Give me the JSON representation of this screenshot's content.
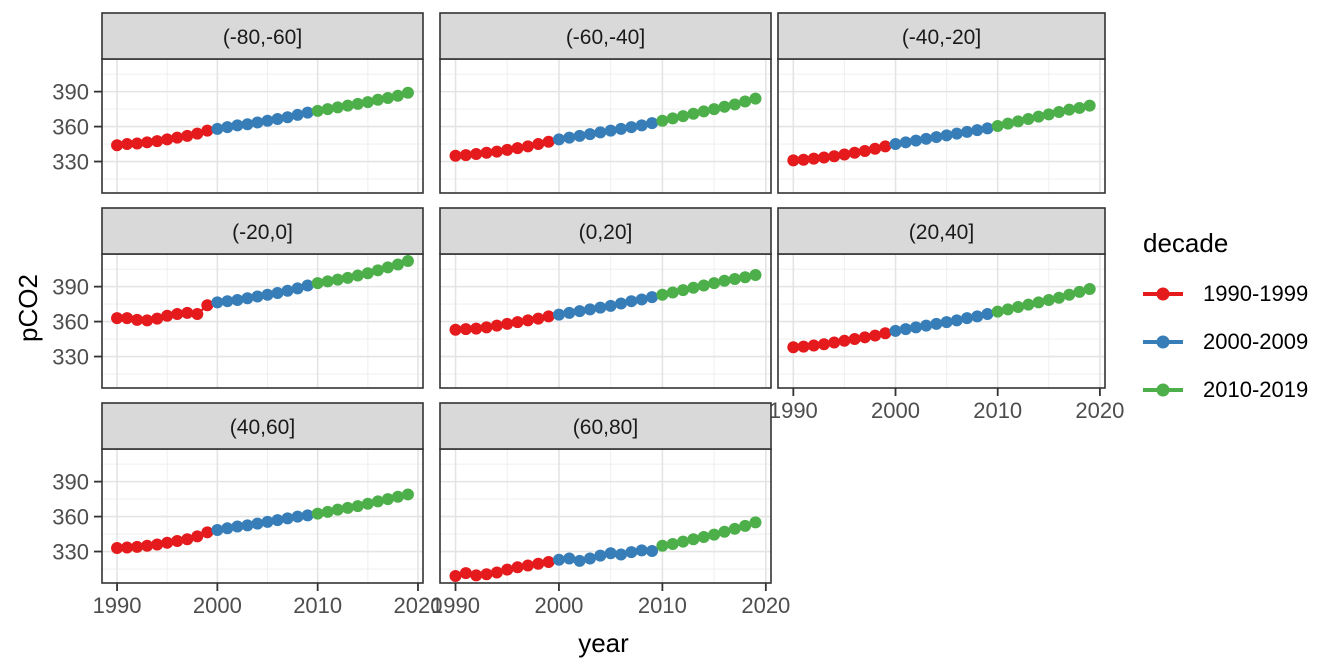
{
  "figure": {
    "y_axis_title": "pCO2",
    "x_axis_title": "year",
    "legend": {
      "title": "decade",
      "entries": [
        {
          "label": "1990-1999",
          "color": "#E41A1C"
        },
        {
          "label": "2000-2009",
          "color": "#377EB8"
        },
        {
          "label": "2010-2019",
          "color": "#4DAF4A"
        }
      ]
    }
  },
  "colors": {
    "red": "#E41A1C",
    "blue": "#377EB8",
    "green": "#4DAF4A",
    "strip_fill": "#D9D9D9",
    "panel_border": "#333333",
    "grid_major": "#E4E4E4",
    "grid_minor": "#F0F0F0",
    "tick_text": "#4D4D4D",
    "strip_text": "#1A1A1A"
  },
  "chart_data": {
    "type": "scatter",
    "title": "",
    "xlabel": "year",
    "ylabel": "pCO2",
    "legend_title": "decade",
    "legend_position": "right",
    "grid": true,
    "x_ticks": [
      1990,
      2000,
      2010,
      2020
    ],
    "y_ticks": [
      330,
      360,
      390
    ],
    "x_minor_ticks": [
      1995,
      2005,
      2015
    ],
    "y_minor_ticks": [
      315,
      345,
      375,
      405
    ],
    "x_range": [
      1988.5,
      2020.5
    ],
    "y_range": [
      303,
      418
    ],
    "years": [
      1990,
      1991,
      1992,
      1993,
      1994,
      1995,
      1996,
      1997,
      1998,
      1999,
      2000,
      2001,
      2002,
      2003,
      2004,
      2005,
      2006,
      2007,
      2008,
      2009,
      2010,
      2011,
      2012,
      2013,
      2014,
      2015,
      2016,
      2017,
      2018,
      2019
    ],
    "decades": [
      {
        "name": "1990-1999",
        "start": 1990,
        "end": 1999,
        "color": "#E41A1C"
      },
      {
        "name": "2000-2009",
        "start": 2000,
        "end": 2009,
        "color": "#377EB8"
      },
      {
        "name": "2010-2019",
        "start": 2010,
        "end": 2019,
        "color": "#4DAF4A"
      }
    ],
    "facets": [
      {
        "label": "(-80,-60]",
        "pco2": [
          344,
          345,
          345.5,
          346.5,
          347.5,
          349,
          350.5,
          352,
          354,
          356.5,
          358,
          359.5,
          361,
          362,
          363.5,
          365,
          366.5,
          368,
          370,
          372,
          373.5,
          375,
          376.5,
          378,
          379.5,
          381,
          383,
          384.5,
          386.5,
          389
        ]
      },
      {
        "label": "(-60,-40]",
        "pco2": [
          335,
          335.5,
          336.5,
          337.5,
          338.5,
          340,
          341.5,
          343,
          345,
          347,
          349,
          350.5,
          352,
          353.5,
          355,
          356.5,
          358,
          359.5,
          361,
          363,
          365,
          367,
          369,
          371,
          373,
          375,
          377,
          379,
          381.5,
          384
        ]
      },
      {
        "label": "(-40,-20]",
        "pco2": [
          331,
          331.5,
          332.5,
          333.5,
          334.5,
          336,
          337.5,
          339,
          341,
          343,
          345,
          346.5,
          348,
          349.5,
          351,
          352.5,
          354,
          355.5,
          357,
          358.5,
          360.5,
          362.5,
          364.5,
          366.5,
          368.5,
          370.5,
          372.5,
          374.5,
          376,
          378
        ]
      },
      {
        "label": "(-20,0]",
        "pco2": [
          363,
          363,
          361.5,
          361,
          362.5,
          365,
          366.5,
          367.5,
          366.5,
          374,
          376.5,
          377.5,
          378.5,
          380,
          381.5,
          383,
          384.5,
          386.5,
          388.5,
          391,
          393,
          394.5,
          396,
          397.5,
          399.5,
          401.5,
          404,
          406.5,
          409,
          412
        ]
      },
      {
        "label": "(0,20]",
        "pco2": [
          353,
          353.5,
          354,
          355,
          356.5,
          358,
          359.5,
          361,
          362.5,
          364.5,
          366,
          367.5,
          369,
          370.5,
          372,
          373.5,
          375.5,
          377.5,
          379,
          381,
          383,
          385,
          387,
          389,
          391,
          393,
          395,
          396.5,
          398,
          400
        ]
      },
      {
        "label": "(20,40]",
        "pco2": [
          338,
          338.5,
          339.5,
          340.5,
          342,
          343.5,
          345,
          346.5,
          348,
          350,
          352,
          353.5,
          355,
          356.5,
          358,
          359.5,
          361,
          363,
          364.5,
          366.5,
          368.5,
          370.5,
          372.5,
          374.5,
          376.5,
          378.5,
          380.5,
          383,
          385.5,
          388
        ]
      },
      {
        "label": "(40,60]",
        "pco2": [
          333,
          333.5,
          334,
          335,
          336,
          337.5,
          339,
          340.5,
          343,
          346.5,
          348.5,
          350,
          351.5,
          352.5,
          354,
          355.5,
          357,
          358.5,
          360,
          361,
          362.5,
          364,
          366,
          367.5,
          369,
          371,
          373,
          375,
          377,
          379
        ]
      },
      {
        "label": "(60,80]",
        "pco2": [
          309,
          311.5,
          309.5,
          310.5,
          312,
          314.5,
          316.5,
          318,
          319.5,
          321,
          323,
          324,
          322,
          324,
          326.5,
          328.5,
          327.5,
          329.5,
          331,
          330.5,
          335,
          336.5,
          338.5,
          340.5,
          342.5,
          344.5,
          347,
          349.5,
          352,
          355
        ]
      }
    ]
  }
}
